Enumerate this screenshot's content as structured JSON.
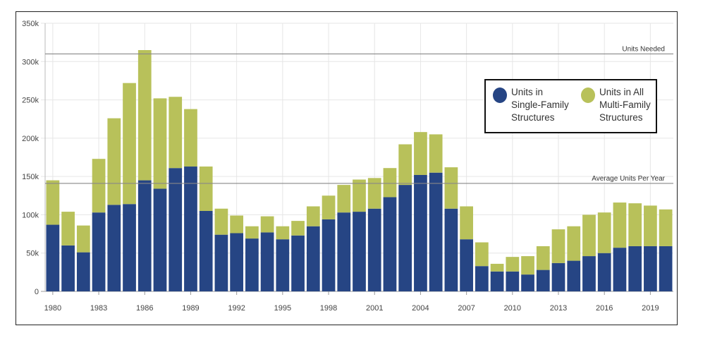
{
  "chart_data": {
    "type": "bar",
    "stacked": true,
    "title": "",
    "xlabel": "",
    "ylabel": "",
    "ylim": [
      0,
      350000
    ],
    "yticks": [
      "0",
      "50k",
      "100k",
      "150k",
      "200k",
      "250k",
      "300k",
      "350k"
    ],
    "ytick_values": [
      0,
      50000,
      100000,
      150000,
      200000,
      250000,
      300000,
      350000
    ],
    "xticks": [
      "1980",
      "1983",
      "1986",
      "1989",
      "1992",
      "1995",
      "1998",
      "2001",
      "2004",
      "2007",
      "2010",
      "2013",
      "2016",
      "2019"
    ],
    "categories": [
      1980,
      1981,
      1982,
      1983,
      1984,
      1985,
      1986,
      1987,
      1988,
      1989,
      1990,
      1991,
      1992,
      1993,
      1994,
      1995,
      1996,
      1997,
      1998,
      1999,
      2000,
      2001,
      2002,
      2003,
      2004,
      2005,
      2006,
      2007,
      2008,
      2009,
      2010,
      2011,
      2012,
      2013,
      2014,
      2015,
      2016,
      2017,
      2018,
      2019,
      2020
    ],
    "series": [
      {
        "name": "Units in Single-Family Structures",
        "color": "#264584",
        "values": [
          87000,
          60000,
          51000,
          103000,
          113000,
          114000,
          145000,
          134000,
          161000,
          163000,
          105000,
          74000,
          76000,
          69000,
          77000,
          68000,
          73000,
          85000,
          94000,
          103000,
          104000,
          108000,
          123000,
          139000,
          152000,
          155000,
          108000,
          68000,
          33000,
          26000,
          26000,
          22000,
          28000,
          37000,
          40000,
          46000,
          50000,
          57000,
          59000,
          59000,
          59000
        ]
      },
      {
        "name": "Units in All Multi-Family Structures",
        "color": "#b8c15a",
        "values": [
          58000,
          44000,
          35000,
          70000,
          113000,
          158000,
          170000,
          118000,
          93000,
          75000,
          58000,
          34000,
          23000,
          16000,
          21000,
          17000,
          19000,
          26000,
          31000,
          36000,
          42000,
          40000,
          38000,
          53000,
          56000,
          50000,
          54000,
          43000,
          31000,
          10000,
          19000,
          24000,
          31000,
          44000,
          45000,
          54000,
          53000,
          59000,
          56000,
          53000,
          48000
        ]
      }
    ],
    "reference_lines": [
      {
        "label": "Units Needed",
        "value": 310000
      },
      {
        "label": "Average Units Per Year",
        "value": 141000
      }
    ],
    "legend": {
      "position": "top-right",
      "items": [
        {
          "label": "Units in Single-Family Structures",
          "lines": [
            "Units in",
            "Single-Family",
            "Structures"
          ]
        },
        {
          "label": "Units in All Multi-Family Structures",
          "lines": [
            "Units in All",
            "Multi-Family",
            "Structures"
          ]
        }
      ]
    },
    "grid": true
  }
}
